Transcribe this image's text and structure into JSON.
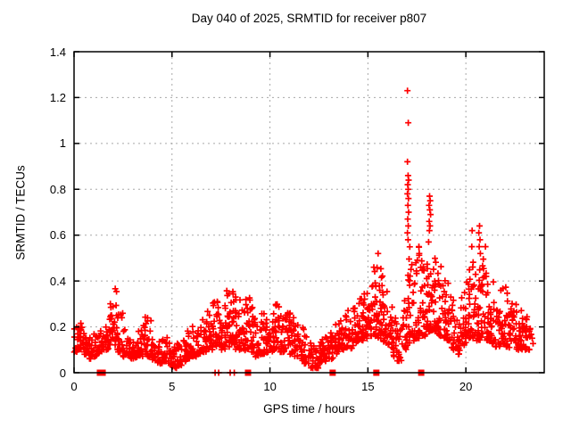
{
  "chart_data": {
    "type": "scatter",
    "title": "Day 040 of 2025, SRMTID for receiver p807",
    "xlabel": "GPS time / hours",
    "ylabel": "SRMTID / TECUs",
    "xlim": [
      0,
      24
    ],
    "ylim": [
      0,
      1.4
    ],
    "xticks": [
      0,
      5,
      10,
      15,
      20
    ],
    "ytick_values": [
      0,
      0.2,
      0.4,
      0.6,
      0.8,
      1.0,
      1.2,
      1.4
    ],
    "ytick_labels": [
      "0",
      "0.2",
      "0.4",
      "0.6",
      "0.8",
      "1",
      "1.2",
      "1.4"
    ],
    "grid": true,
    "legend": "none",
    "marker": "plus",
    "colors": {
      "points": "#ff0000",
      "grid": "#a8a8a8",
      "axis": "#000000",
      "background": "#ffffff"
    },
    "density_bins": [
      [
        0.0,
        0.09,
        0.2,
        20
      ],
      [
        0.25,
        0.1,
        0.22,
        20
      ],
      [
        0.5,
        0.08,
        0.18,
        18
      ],
      [
        0.75,
        0.06,
        0.16,
        16
      ],
      [
        1.0,
        0.07,
        0.17,
        16
      ],
      [
        1.25,
        0.09,
        0.19,
        16
      ],
      [
        1.5,
        0.1,
        0.22,
        18
      ],
      [
        1.75,
        0.12,
        0.32,
        20
      ],
      [
        2.0,
        0.1,
        0.37,
        20
      ],
      [
        2.25,
        0.09,
        0.26,
        18
      ],
      [
        2.5,
        0.07,
        0.2,
        16
      ],
      [
        2.75,
        0.06,
        0.16,
        16
      ],
      [
        3.0,
        0.06,
        0.15,
        16
      ],
      [
        3.25,
        0.07,
        0.2,
        16
      ],
      [
        3.5,
        0.08,
        0.27,
        18
      ],
      [
        3.75,
        0.07,
        0.24,
        16
      ],
      [
        4.0,
        0.05,
        0.16,
        16
      ],
      [
        4.25,
        0.04,
        0.14,
        16
      ],
      [
        4.5,
        0.05,
        0.16,
        16
      ],
      [
        4.75,
        0.03,
        0.13,
        16
      ],
      [
        5.0,
        0.02,
        0.12,
        16
      ],
      [
        5.25,
        0.03,
        0.13,
        16
      ],
      [
        5.5,
        0.05,
        0.16,
        16
      ],
      [
        5.75,
        0.06,
        0.2,
        16
      ],
      [
        6.0,
        0.07,
        0.22,
        16
      ],
      [
        6.25,
        0.08,
        0.2,
        16
      ],
      [
        6.5,
        0.09,
        0.24,
        18
      ],
      [
        6.75,
        0.1,
        0.28,
        18
      ],
      [
        7.0,
        0.1,
        0.32,
        18
      ],
      [
        7.25,
        0.11,
        0.33,
        20
      ],
      [
        7.5,
        0.1,
        0.3,
        20
      ],
      [
        7.75,
        0.11,
        0.36,
        22
      ],
      [
        8.0,
        0.12,
        0.37,
        22
      ],
      [
        8.25,
        0.1,
        0.33,
        20
      ],
      [
        8.5,
        0.09,
        0.28,
        18
      ],
      [
        8.75,
        0.1,
        0.33,
        20
      ],
      [
        9.0,
        0.09,
        0.3,
        18
      ],
      [
        9.25,
        0.07,
        0.24,
        16
      ],
      [
        9.5,
        0.08,
        0.26,
        18
      ],
      [
        9.75,
        0.08,
        0.24,
        18
      ],
      [
        10.0,
        0.09,
        0.28,
        18
      ],
      [
        10.25,
        0.1,
        0.3,
        20
      ],
      [
        10.5,
        0.09,
        0.26,
        18
      ],
      [
        10.75,
        0.1,
        0.3,
        18
      ],
      [
        11.0,
        0.08,
        0.26,
        18
      ],
      [
        11.25,
        0.07,
        0.22,
        16
      ],
      [
        11.5,
        0.05,
        0.2,
        16
      ],
      [
        11.75,
        0.04,
        0.16,
        16
      ],
      [
        12.0,
        0.02,
        0.13,
        16
      ],
      [
        12.25,
        0.02,
        0.12,
        16
      ],
      [
        12.5,
        0.04,
        0.15,
        16
      ],
      [
        12.75,
        0.05,
        0.17,
        16
      ],
      [
        13.0,
        0.06,
        0.19,
        16
      ],
      [
        13.25,
        0.08,
        0.22,
        18
      ],
      [
        13.5,
        0.1,
        0.26,
        18
      ],
      [
        13.75,
        0.11,
        0.28,
        18
      ],
      [
        14.0,
        0.1,
        0.25,
        16
      ],
      [
        14.25,
        0.13,
        0.3,
        20
      ],
      [
        14.5,
        0.14,
        0.33,
        20
      ],
      [
        14.75,
        0.15,
        0.35,
        20
      ],
      [
        15.0,
        0.15,
        0.4,
        20
      ],
      [
        15.25,
        0.16,
        0.46,
        22
      ],
      [
        15.5,
        0.15,
        0.5,
        22
      ],
      [
        15.75,
        0.13,
        0.38,
        20
      ],
      [
        16.0,
        0.11,
        0.32,
        18
      ],
      [
        16.25,
        0.07,
        0.24,
        16
      ],
      [
        16.5,
        0.05,
        0.2,
        16
      ],
      [
        16.75,
        0.1,
        0.35,
        18
      ],
      [
        17.0,
        0.13,
        0.55,
        22
      ],
      [
        17.25,
        0.14,
        0.48,
        20
      ],
      [
        17.5,
        0.15,
        0.55,
        20
      ],
      [
        17.75,
        0.16,
        0.5,
        20
      ],
      [
        18.0,
        0.18,
        0.52,
        22
      ],
      [
        18.25,
        0.18,
        0.5,
        22
      ],
      [
        18.5,
        0.16,
        0.48,
        20
      ],
      [
        18.75,
        0.15,
        0.45,
        20
      ],
      [
        19.0,
        0.14,
        0.4,
        18
      ],
      [
        19.25,
        0.1,
        0.32,
        16
      ],
      [
        19.5,
        0.08,
        0.26,
        16
      ],
      [
        19.75,
        0.12,
        0.35,
        18
      ],
      [
        20.0,
        0.15,
        0.45,
        20
      ],
      [
        20.25,
        0.15,
        0.5,
        20
      ],
      [
        20.5,
        0.14,
        0.45,
        20
      ],
      [
        20.75,
        0.15,
        0.52,
        20
      ],
      [
        21.0,
        0.14,
        0.45,
        20
      ],
      [
        21.25,
        0.12,
        0.4,
        18
      ],
      [
        21.5,
        0.11,
        0.36,
        18
      ],
      [
        21.75,
        0.12,
        0.4,
        18
      ],
      [
        22.0,
        0.11,
        0.38,
        18
      ],
      [
        22.25,
        0.12,
        0.35,
        18
      ],
      [
        22.5,
        0.1,
        0.3,
        18
      ],
      [
        22.75,
        0.1,
        0.28,
        18
      ],
      [
        23.0,
        0.1,
        0.25,
        18
      ],
      [
        23.25,
        0.12,
        0.2,
        6
      ]
    ],
    "outlier_points": [
      [
        17.02,
        1.23
      ],
      [
        17.06,
        1.09
      ],
      [
        17.02,
        0.92
      ],
      [
        17.05,
        0.86
      ],
      [
        17.08,
        0.84
      ],
      [
        17.03,
        0.82
      ],
      [
        17.06,
        0.8
      ],
      [
        17.02,
        0.78
      ],
      [
        17.07,
        0.76
      ],
      [
        17.04,
        0.73
      ],
      [
        17.08,
        0.7
      ],
      [
        17.03,
        0.67
      ],
      [
        17.06,
        0.64
      ],
      [
        17.02,
        0.61
      ],
      [
        17.05,
        0.58
      ],
      [
        17.6,
        0.55
      ],
      [
        17.62,
        0.52
      ],
      [
        18.15,
        0.77
      ],
      [
        18.18,
        0.75
      ],
      [
        18.12,
        0.73
      ],
      [
        18.16,
        0.71
      ],
      [
        18.2,
        0.69
      ],
      [
        18.13,
        0.66
      ],
      [
        18.17,
        0.64
      ],
      [
        18.14,
        0.62
      ],
      [
        18.1,
        0.57
      ],
      [
        20.32,
        0.62
      ],
      [
        20.3,
        0.55
      ],
      [
        20.7,
        0.64
      ],
      [
        20.66,
        0.61
      ],
      [
        20.72,
        0.58
      ],
      [
        20.68,
        0.55
      ],
      [
        20.74,
        0.52
      ],
      [
        21.0,
        0.55
      ],
      [
        15.52,
        0.52
      ],
      [
        15.3,
        0.46
      ]
    ],
    "zero_axis_markers": {
      "square_times": [
        1.32,
        1.46,
        8.88,
        13.2,
        15.43,
        17.72
      ],
      "plus_times": [
        7.2,
        7.38,
        7.97,
        8.18
      ]
    }
  }
}
